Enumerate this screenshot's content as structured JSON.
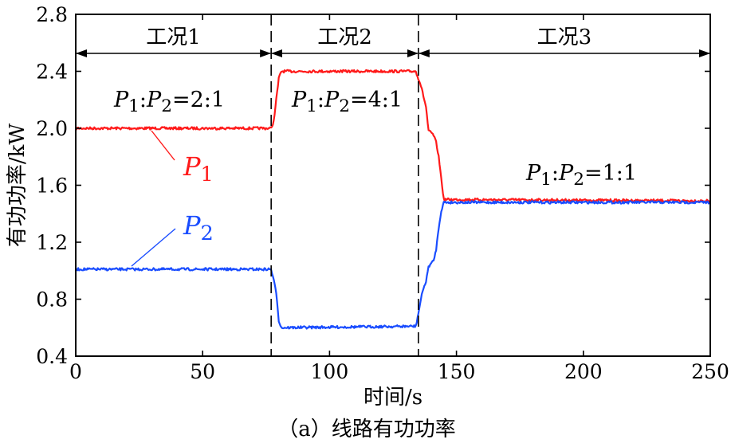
{
  "chart_data": {
    "type": "line",
    "xlabel": "时间/s",
    "ylabel": "有功功率/kW",
    "caption": "（a）线路有功功率",
    "xlim": [
      0,
      250
    ],
    "ylim": [
      0.4,
      2.8
    ],
    "xticks": [
      "0",
      "50",
      "100",
      "150",
      "200",
      "250"
    ],
    "yticks": [
      "0.4",
      "0.8",
      "1.2",
      "1.6",
      "2.0",
      "2.4",
      "2.8"
    ],
    "grid": false,
    "colors": {
      "P1": "#ff1a1a",
      "P2": "#1a4dff"
    },
    "regions": [
      {
        "label": "工况1",
        "x": [
          0,
          77
        ]
      },
      {
        "label": "工况2",
        "x": [
          77,
          135
        ]
      },
      {
        "label": "工况3",
        "x": [
          135,
          250
        ]
      }
    ],
    "annotations": [
      {
        "text": "P1:P2=2:1",
        "parts": [
          "P",
          "1",
          ":",
          "P",
          "2",
          "=2:1"
        ]
      },
      {
        "text": "P1:P2=4:1",
        "parts": [
          "P",
          "1",
          ":",
          "P",
          "2",
          "=4:1"
        ]
      },
      {
        "text": "P1:P2=1:1",
        "parts": [
          "P",
          "1",
          ":",
          "P",
          "2",
          "=1:1"
        ]
      }
    ],
    "series": [
      {
        "name": "P1",
        "label_parts": [
          "P",
          "1"
        ],
        "x": [
          0,
          77,
          78,
          80,
          81,
          84,
          134,
          136,
          138,
          139,
          140,
          141,
          142,
          143,
          144,
          145,
          250
        ],
        "y": [
          2.0,
          2.0,
          2.05,
          2.35,
          2.4,
          2.4,
          2.4,
          2.3,
          2.15,
          1.98,
          1.97,
          1.95,
          1.9,
          1.8,
          1.65,
          1.5,
          1.49
        ]
      },
      {
        "name": "P2",
        "label_parts": [
          "P",
          "2"
        ],
        "x": [
          0,
          77,
          78,
          79,
          80,
          81,
          134,
          135,
          136,
          137,
          138,
          139,
          140,
          141,
          142,
          143,
          144,
          145,
          250
        ],
        "y": [
          1.01,
          1.01,
          0.93,
          0.85,
          0.65,
          0.6,
          0.61,
          0.7,
          0.8,
          0.88,
          0.92,
          1.03,
          1.05,
          1.07,
          1.15,
          1.3,
          1.42,
          1.48,
          1.48
        ]
      }
    ]
  }
}
